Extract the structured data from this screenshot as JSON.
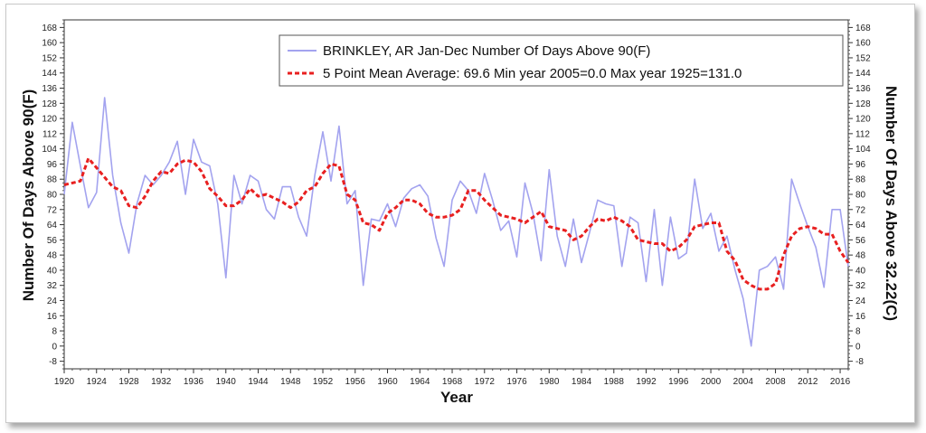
{
  "chart_data": {
    "type": "line",
    "xlabel": "Year",
    "ylabel_left": "Number Of Days Above 90(F)",
    "ylabel_right": "Number Of Days Above 32.22(C)",
    "xlim": [
      1920,
      2017
    ],
    "ylim": [
      -12,
      172
    ],
    "x_ticks": [
      1920,
      1924,
      1928,
      1932,
      1936,
      1940,
      1944,
      1948,
      1952,
      1956,
      1960,
      1964,
      1968,
      1972,
      1976,
      1980,
      1984,
      1988,
      1992,
      1996,
      2000,
      2004,
      2008,
      2012,
      2016
    ],
    "y_ticks": [
      -8,
      0,
      8,
      16,
      24,
      32,
      40,
      48,
      56,
      64,
      72,
      80,
      88,
      96,
      104,
      112,
      120,
      128,
      136,
      144,
      152,
      160,
      168
    ],
    "grid": false,
    "legend_position": "top-right",
    "series": [
      {
        "name": "BRINKLEY, AR  Jan-Dec  Number Of Days Above 90(F)",
        "color": "#a3a3ef",
        "style": "solid",
        "x": [
          1920,
          1921,
          1922,
          1923,
          1924,
          1925,
          1926,
          1927,
          1928,
          1929,
          1930,
          1931,
          1932,
          1933,
          1934,
          1935,
          1936,
          1937,
          1938,
          1939,
          1940,
          1941,
          1942,
          1943,
          1944,
          1945,
          1946,
          1947,
          1948,
          1949,
          1950,
          1951,
          1952,
          1953,
          1954,
          1955,
          1956,
          1957,
          1958,
          1959,
          1960,
          1961,
          1962,
          1963,
          1964,
          1965,
          1966,
          1967,
          1968,
          1969,
          1970,
          1971,
          1972,
          1973,
          1974,
          1975,
          1976,
          1977,
          1978,
          1979,
          1980,
          1981,
          1982,
          1983,
          1984,
          1985,
          1986,
          1987,
          1988,
          1989,
          1990,
          1991,
          1992,
          1993,
          1994,
          1995,
          1996,
          1997,
          1998,
          1999,
          2000,
          2001,
          2002,
          2003,
          2004,
          2005,
          2006,
          2007,
          2008,
          2009,
          2010,
          2011,
          2012,
          2013,
          2014,
          2015,
          2016,
          2017
        ],
        "values": [
          80,
          118,
          95,
          73,
          81,
          131,
          90,
          65,
          49,
          75,
          90,
          85,
          90,
          97,
          108,
          80,
          109,
          97,
          95,
          75,
          36,
          90,
          75,
          90,
          87,
          72,
          67,
          84,
          84,
          68,
          58,
          90,
          113,
          87,
          116,
          75,
          82,
          32,
          67,
          66,
          75,
          63,
          78,
          83,
          85,
          79,
          57,
          42,
          77,
          87,
          82,
          70,
          91,
          77,
          61,
          66,
          47,
          86,
          70,
          45,
          93,
          58,
          42,
          67,
          44,
          60,
          77,
          75,
          74,
          42,
          68,
          65,
          34,
          72,
          32,
          68,
          46,
          49,
          88,
          62,
          70,
          50,
          58,
          40,
          25,
          0,
          40,
          42,
          47,
          30,
          88,
          75,
          63,
          52,
          31,
          72,
          72,
          42
        ]
      },
      {
        "name": "5 Point Mean  Average: 69.6  Min year 2005=0.0  Max year 1925=131.0",
        "color": "#e82020",
        "style": "dashed",
        "x": [
          1920,
          1921,
          1922,
          1923,
          1924,
          1925,
          1926,
          1927,
          1928,
          1929,
          1930,
          1931,
          1932,
          1933,
          1934,
          1935,
          1936,
          1937,
          1938,
          1939,
          1940,
          1941,
          1942,
          1943,
          1944,
          1945,
          1946,
          1947,
          1948,
          1949,
          1950,
          1951,
          1952,
          1953,
          1954,
          1955,
          1956,
          1957,
          1958,
          1959,
          1960,
          1961,
          1962,
          1963,
          1964,
          1965,
          1966,
          1967,
          1968,
          1969,
          1970,
          1971,
          1972,
          1973,
          1974,
          1975,
          1976,
          1977,
          1978,
          1979,
          1980,
          1981,
          1982,
          1983,
          1984,
          1985,
          1986,
          1987,
          1988,
          1989,
          1990,
          1991,
          1992,
          1993,
          1994,
          1995,
          1996,
          1997,
          1998,
          1999,
          2000,
          2001,
          2002,
          2003,
          2004,
          2005,
          2006,
          2007,
          2008,
          2009,
          2010,
          2011,
          2012,
          2013,
          2014,
          2015,
          2016,
          2017
        ],
        "values": [
          85,
          86,
          87,
          99,
          94,
          89,
          84,
          82,
          74,
          73,
          79,
          87,
          92,
          91,
          96,
          98,
          97,
          92,
          83,
          79,
          74,
          74,
          77,
          83,
          79,
          80,
          78,
          76,
          73,
          76,
          82,
          84,
          91,
          96,
          95,
          80,
          77,
          65,
          64,
          61,
          70,
          73,
          77,
          77,
          75,
          70,
          68,
          68,
          69,
          72,
          82,
          82,
          77,
          73,
          69,
          68,
          67,
          65,
          68,
          71,
          63,
          62,
          61,
          56,
          58,
          63,
          67,
          66,
          68,
          66,
          63,
          56,
          55,
          54,
          54,
          50,
          52,
          56,
          63,
          64,
          65,
          65,
          50,
          45,
          35,
          32,
          30,
          30,
          33,
          48,
          58,
          62,
          63,
          62,
          59,
          59,
          50,
          44
        ]
      }
    ],
    "legend": [
      "BRINKLEY, AR  Jan-Dec  Number Of Days Above 90(F)",
      "5 Point Mean  Average: 69.6  Min year 2005=0.0  Max year 1925=131.0"
    ]
  }
}
